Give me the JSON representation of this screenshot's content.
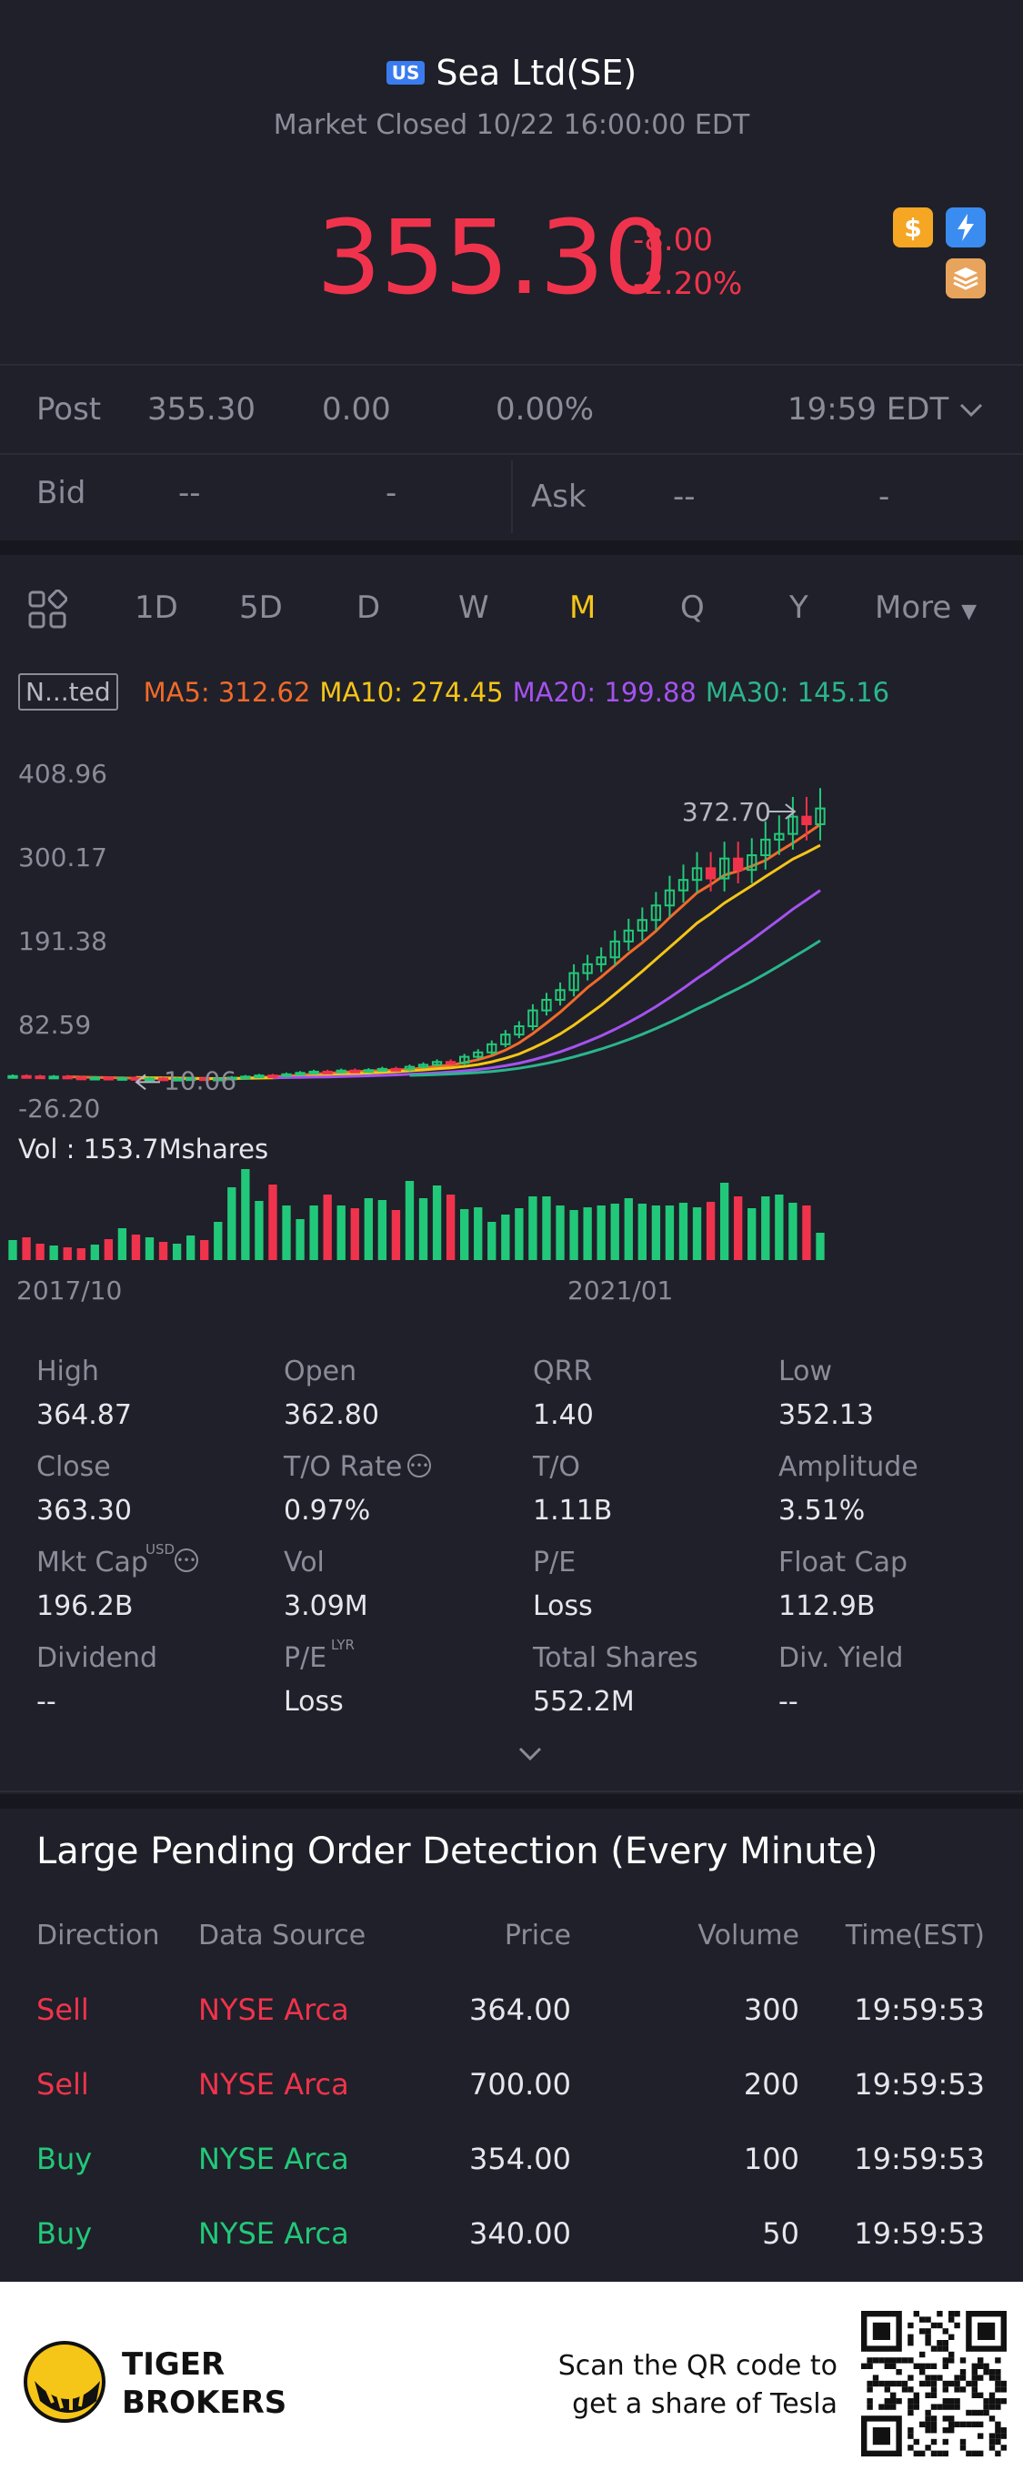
{
  "header": {
    "market_badge": "US",
    "title": "Sea Ltd(SE)",
    "subtitle": "Market Closed 10/22 16:00:00 EDT",
    "price": "355.30",
    "change": "-8.00",
    "change_pct": "-2.20%",
    "icons": [
      "dollar-icon",
      "flash-icon",
      "stack-icon"
    ]
  },
  "post": {
    "label": "Post",
    "price": "355.30",
    "change": "0.00",
    "change_pct": "0.00%",
    "time": "19:59 EDT"
  },
  "quote": {
    "bid_label": "Bid",
    "bid_price": "--",
    "bid_size": "-",
    "ask_label": "Ask",
    "ask_price": "--",
    "ask_size": "-"
  },
  "periods": {
    "items": [
      "1D",
      "5D",
      "D",
      "W",
      "M",
      "Q",
      "Y"
    ],
    "active": "M",
    "more": "More"
  },
  "ma": {
    "adjust": "N...ted",
    "ma5": "MA5: 312.62",
    "ma10": "MA10: 274.45",
    "ma20": "MA20: 199.88",
    "ma30": "MA30: 145.16",
    "colors": {
      "ma5": "#f06a2a",
      "ma10": "#f5c518",
      "ma20": "#a552f0",
      "ma30": "#2bb58c"
    }
  },
  "chart_data": {
    "type": "candlestick",
    "y_ticks": [
      "408.96",
      "300.17",
      "191.38",
      "82.59",
      "-26.20"
    ],
    "ylim": [
      -26.2,
      408.96
    ],
    "high_label": "372.70",
    "low_label": "10.06",
    "x_labels": [
      "2017/10",
      "2021/01"
    ],
    "volume_label": "Vol  : 153.7Mshares",
    "colors": {
      "up": "#22c879",
      "down": "#f0334c"
    },
    "closes": [
      15.5,
      15.0,
      14.2,
      14.8,
      13.6,
      12.8,
      13.4,
      12.5,
      13.0,
      11.8,
      12.4,
      11.5,
      12.0,
      12.6,
      11.4,
      12.2,
      13.5,
      14.8,
      16.2,
      15.4,
      17.8,
      19.6,
      21.2,
      20.4,
      22.6,
      21.5,
      23.2,
      24.8,
      24.0,
      27.5,
      30.2,
      33.8,
      32.6,
      40.5,
      46.2,
      56.8,
      69.4,
      80.2,
      100.8,
      114.6,
      127.2,
      149.3,
      160.8,
      169.8,
      190.4,
      204.6,
      218.3,
      237.2,
      256.8,
      270.4,
      285.6,
      272.3,
      298.2,
      283.4,
      302.5,
      322.8,
      330.2,
      352.6,
      342.8,
      363.3
    ],
    "volumes": [
      22,
      25,
      18,
      16,
      14,
      13,
      17,
      23,
      35,
      28,
      25,
      20,
      18,
      27,
      22,
      42,
      80,
      100,
      65,
      83,
      60,
      45,
      60,
      72,
      60,
      57,
      68,
      66,
      55,
      87,
      68,
      82,
      72,
      56,
      58,
      42,
      50,
      57,
      70,
      70,
      60,
      55,
      58,
      60,
      62,
      68,
      62,
      60,
      60,
      63,
      58,
      64,
      85,
      70,
      57,
      70,
      72,
      63,
      60,
      30
    ]
  },
  "stats": [
    {
      "label": "High",
      "value": "364.87"
    },
    {
      "label": "Open",
      "value": "362.80"
    },
    {
      "label": "QRR",
      "value": "1.40"
    },
    {
      "label": "Low",
      "value": "352.13"
    },
    {
      "label": "Close",
      "value": "363.30"
    },
    {
      "label": "T/O Rate",
      "value": "0.97%"
    },
    {
      "label": "T/O",
      "value": "1.11B"
    },
    {
      "label": "Amplitude",
      "value": "3.51%"
    },
    {
      "label": "Mkt Cap",
      "value": "196.2B",
      "sup": "USD"
    },
    {
      "label": "Vol",
      "value": "3.09M"
    },
    {
      "label": "P/E",
      "value": "Loss"
    },
    {
      "label": "Float Cap",
      "value": "112.9B"
    },
    {
      "label": "Dividend",
      "value": "--"
    },
    {
      "label": "P/E",
      "value": "Loss",
      "sup": "LYR"
    },
    {
      "label": "Total Shares",
      "value": "552.2M"
    },
    {
      "label": "Div. Yield",
      "value": "--"
    }
  ],
  "orders": {
    "title": "Large Pending Order Detection (Every Minute)",
    "headers": [
      "Direction",
      "Data Source",
      "Price",
      "Volume",
      "Time(EST)"
    ],
    "rows": [
      {
        "direction": "Sell",
        "source": "NYSE Arca",
        "price": "364.00",
        "volume": "300",
        "time": "19:59:53"
      },
      {
        "direction": "Sell",
        "source": "NYSE Arca",
        "price": "700.00",
        "volume": "200",
        "time": "19:59:53"
      },
      {
        "direction": "Buy",
        "source": "NYSE Arca",
        "price": "354.00",
        "volume": "100",
        "time": "19:59:53"
      },
      {
        "direction": "Buy",
        "source": "NYSE Arca",
        "price": "340.00",
        "volume": "50",
        "time": "19:59:53"
      }
    ]
  },
  "footer": {
    "brand_line1": "TIGER",
    "brand_line2": "BROKERS",
    "scan_line1": "Scan the QR code to",
    "scan_line2": "get a share of Tesla"
  }
}
